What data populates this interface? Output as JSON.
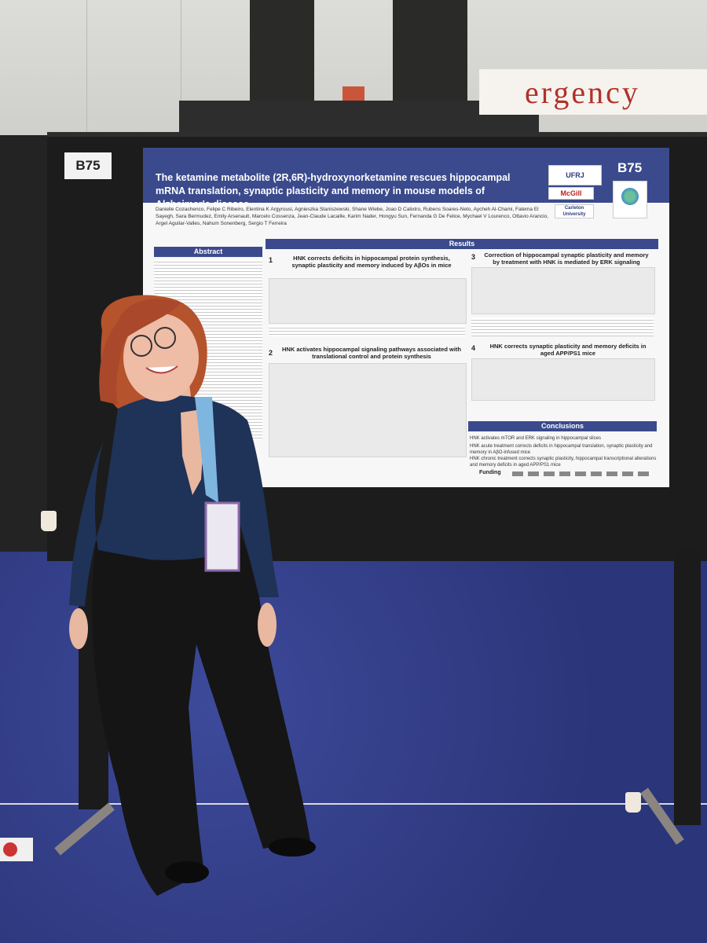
{
  "booth": {
    "tag": "B75"
  },
  "banner": {
    "text": "ergency"
  },
  "poster": {
    "title": "The ketamine metabolite (2R,6R)-hydroxynorketamine rescues hippocampal mRNA translation, synaptic plasticity and memory in mouse models of Alzheimer's disease",
    "code": "B75",
    "logos": [
      "UFRJ",
      "McGill",
      "Carleton University"
    ],
    "authors": "Danielle Cozachenco, Felipe C Ribeiro, Elentina K Argyrousi, Agnieszka Staniszewski, Shane Wiebe, Joao D Calixtro, Rubens Soares-Neto, Aycheh Al-Chami, Fatema El Sayegh, Sara Bermudez, Emily Arsenault, Marcelo Cossenza, Jean-Claude Lacaille, Karim Nader, Hongyu Sun, Fernanda G De Felice, Mychael V Lourenco, Ottavio Arancio, Argel Aguilar-Valles, Nahum Sonenberg, Sergio T Ferreira",
    "sections": {
      "abstract": "Abstract",
      "results": "Results",
      "conclusions": "Conclusions",
      "s1": "HNK corrects deficits in hippocampal protein synthesis, synaptic plasticity and memory induced by AβOs in mice",
      "s2": "HNK activates hippocampal signaling pathways associated with translational control and protein synthesis",
      "s3": "Correction of hippocampal synaptic plasticity and memory by treatment with HNK is mediated by ERK signaling",
      "s4": "HNK corrects synaptic plasticity and memory deficits in aged APP/PS1 mice"
    },
    "section_numbers": [
      "1",
      "2",
      "3",
      "4"
    ],
    "conclusions": [
      "HNK activates mTOR and ERK signaling in hippocampal slices",
      "HNK acute treatment corrects deficits in hippocampal translation, synaptic plasticity and memory in AβO-infused mice",
      "HNK chronic treatment corrects synaptic plasticity, hippocampal transcriptional alterations and memory deficits in aged APP/PS1 mice"
    ],
    "funding": "Funding"
  },
  "colors": {
    "poster_header": "#3a4a8c",
    "carpet": "#2f3a84",
    "shirt": "#1f3257",
    "trousers": "#151515",
    "hair": "#b5532c",
    "lanyard": "#7fb6e0"
  }
}
